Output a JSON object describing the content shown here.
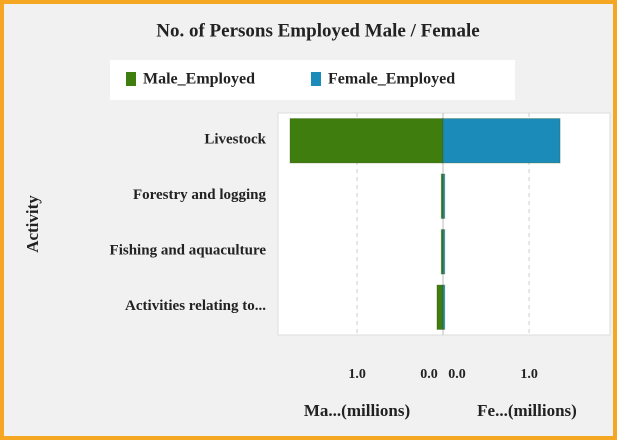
{
  "chart_data": {
    "type": "bar",
    "orientation": "horizontal",
    "title": "No. of Persons Employed Male / Female",
    "ylabel": "Activity",
    "categories": [
      "Livestock",
      "Forestry and logging",
      "Fishing and aquaculture",
      "Activities relating to..."
    ],
    "series": [
      {
        "name": "Male_Employed",
        "color": "#3f7d0e",
        "axis": "x",
        "values": [
          1.78,
          0.02,
          0.02,
          0.07
        ]
      },
      {
        "name": "Female_Employed",
        "color": "#1b8cba",
        "axis": "x2",
        "values": [
          1.36,
          0.02,
          0.02,
          0.02
        ]
      }
    ],
    "xlabel": "Ma...(millions)",
    "x2label": "Fe...(millions)",
    "xlim": [
      0,
      1.92
    ],
    "xticks": [
      {
        "value": 1,
        "label": "1.0"
      },
      {
        "value": 0,
        "label": "0.0"
      }
    ],
    "xreversed": true,
    "x2lim": [
      0,
      1.94
    ],
    "x2ticks": [
      {
        "value": 0,
        "label": "0.0"
      },
      {
        "value": 1,
        "label": "1.0"
      }
    ],
    "grid": true,
    "legend": "top"
  }
}
